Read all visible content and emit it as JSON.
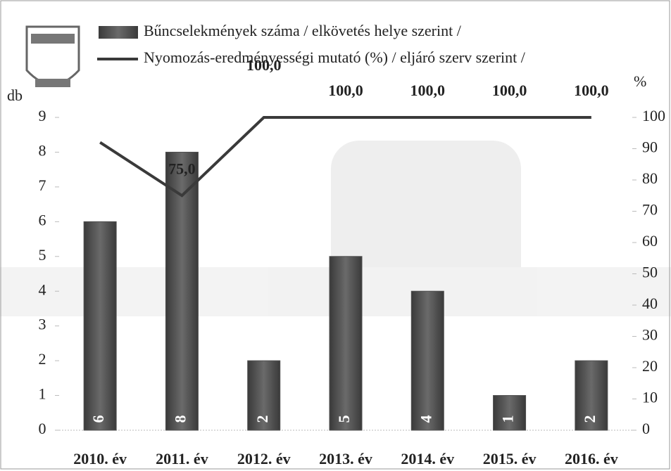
{
  "chart_data": {
    "type": "bar",
    "y_label": "db",
    "y2_label": "%",
    "categories": [
      "2010. év",
      "2011. év",
      "2012. év",
      "2013. év",
      "2014. év",
      "2015. év",
      "2016. év"
    ],
    "series": [
      {
        "name": "Bűncselekmények száma / elkövetés helye szerint /",
        "type": "bar",
        "color": "#4f4f4f",
        "values": [
          6,
          8,
          2,
          5,
          4,
          1,
          2
        ]
      },
      {
        "name": "Nyomozás-eredményességi mutató (%) / eljáró szerv szerint /",
        "type": "line",
        "axis": "y2",
        "color": "#3a3a3a",
        "values": [
          92,
          75,
          100,
          100,
          100,
          100,
          100
        ],
        "value_labels": [
          null,
          "75,0",
          "100,0",
          "100,0",
          "100,0",
          "100,0",
          "100,0"
        ]
      }
    ],
    "ylim": [
      0,
      9
    ],
    "yticks": [
      0,
      1,
      2,
      3,
      4,
      5,
      6,
      7,
      8,
      9
    ],
    "y2lim": [
      0,
      100
    ],
    "y2ticks": [
      0,
      10,
      20,
      30,
      40,
      50,
      60,
      70,
      80,
      90,
      100
    ],
    "grid": false
  }
}
